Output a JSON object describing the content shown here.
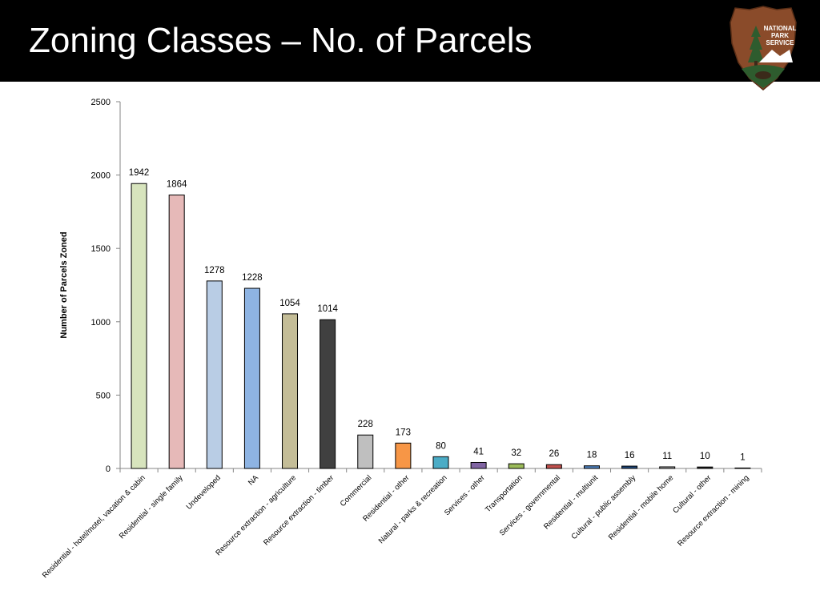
{
  "slide": {
    "title": "Zoning Classes – No. of Parcels"
  },
  "logo": {
    "text_lines": [
      "NATIONAL",
      "PARK",
      "SERVICE"
    ],
    "colors": {
      "brown": "#8a4b2a",
      "green": "#2e5c2e",
      "white": "#ffffff"
    }
  },
  "chart_data": {
    "type": "bar",
    "title": "",
    "xlabel": "",
    "ylabel": "Number of Parcels Zoned",
    "ylim": [
      0,
      2500
    ],
    "yticks": [
      0,
      500,
      1000,
      1500,
      2000,
      2500
    ],
    "grid": false,
    "legend": "none",
    "categories": [
      "Residential - hotel/motel, vacation & cabin",
      "Residential - single family",
      "Undeveloped",
      "NA",
      "Resource extraction - agriculture",
      "Resource extraction - timber",
      "Commercial",
      "Residential - other",
      "Natural - parks & recreation",
      "Services - other",
      "Transportation",
      "Services - governmental",
      "Residential - multiunit",
      "Cultural - public assembly",
      "Residential - mobile home",
      "Cultural - other",
      "Resource extraction - mining"
    ],
    "values": [
      1942,
      1864,
      1278,
      1228,
      1054,
      1014,
      228,
      173,
      80,
      41,
      32,
      26,
      18,
      16,
      11,
      10,
      1
    ],
    "colors": [
      "#d7e4bd",
      "#e6b9b8",
      "#b9cde5",
      "#8eb4e3",
      "#c4bd97",
      "#404040",
      "#bfbfbf",
      "#f79646",
      "#4bacc6",
      "#8064a2",
      "#9bbb59",
      "#c0504d",
      "#4f81bd",
      "#1f497d",
      "#a6a6a6",
      "#262626",
      "#c4bd97"
    ]
  }
}
